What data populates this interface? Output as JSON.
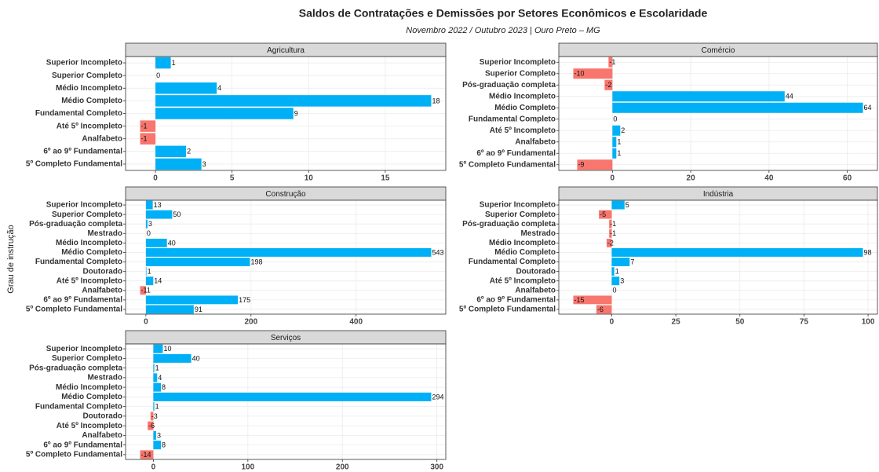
{
  "title": "Saldos de Contratações e Demissões por Setores Econômicos e Escolaridade",
  "subtitle": "Novembro 2022 / Outubro 2023 | Ouro Preto – MG",
  "y_label": "Grau de instrução",
  "colors": {
    "positive": "#00B0F6",
    "negative": "#F8766D"
  },
  "chart_data": [
    {
      "type": "bar",
      "title": "Agricultura",
      "categories": [
        "Superior Incompleto",
        "Superior Completo",
        "Médio Incompleto",
        "Médio Completo",
        "Fundamental Completo",
        "Até 5º Incompleto",
        "Analfabeto",
        "6º ao 9º Fundamental",
        "5º Completo Fundamental"
      ],
      "values": [
        1,
        0,
        4,
        18,
        9,
        -1,
        -1,
        2,
        3
      ],
      "xlim": [
        -1.95,
        18.95
      ],
      "xticks": [
        0,
        5,
        10,
        15
      ],
      "grid": true
    },
    {
      "type": "bar",
      "title": "Comércio",
      "categories": [
        "Superior Incompleto",
        "Superior Completo",
        "Pós-graduação completa",
        "Médio Incompleto",
        "Médio Completo",
        "Fundamental Completo",
        "Até 5º Incompleto",
        "Analfabeto",
        "6º ao 9º Fundamental",
        "5º Completo Fundamental"
      ],
      "values": [
        -1,
        -10,
        -2,
        44,
        64,
        0,
        2,
        1,
        1,
        -9
      ],
      "xlim": [
        -13.7,
        67.7
      ],
      "xticks": [
        0,
        20,
        40,
        60
      ],
      "grid": true
    },
    {
      "type": "bar",
      "title": "Construção",
      "categories": [
        "Superior Incompleto",
        "Superior Completo",
        "Pós-graduação completa",
        "Mestrado",
        "Médio Incompleto",
        "Médio Completo",
        "Fundamental Completo",
        "Doutorado",
        "Até 5º Incompleto",
        "Analfabeto",
        "6º ao 9º Fundamental",
        "5º Completo Fundamental"
      ],
      "values": [
        13,
        50,
        3,
        0,
        40,
        543,
        198,
        1,
        14,
        -11,
        175,
        91
      ],
      "xlim": [
        -38.7,
        570.7
      ],
      "xticks": [
        0,
        200,
        400
      ],
      "grid": true
    },
    {
      "type": "bar",
      "title": "Indústria",
      "categories": [
        "Superior Incompleto",
        "Superior Completo",
        "Pós-graduação completa",
        "Mestrado",
        "Médio Incompleto",
        "Médio Completo",
        "Fundamental Completo",
        "Doutorado",
        "Até 5º Incompleto",
        "Analfabeto",
        "6º ao 9º Fundamental",
        "5º Completo Fundamental"
      ],
      "values": [
        5,
        -5,
        -1,
        -1,
        -2,
        98,
        7,
        1,
        3,
        0,
        -15,
        -6
      ],
      "xlim": [
        -20.65,
        103.65
      ],
      "xticks": [
        0,
        25,
        50,
        75,
        100
      ],
      "grid": true
    },
    {
      "type": "bar",
      "title": "Serviços",
      "categories": [
        "Superior Incompleto",
        "Superior Completo",
        "Pós-graduação completa",
        "Mestrado",
        "Médio Incompleto",
        "Médio Completo",
        "Fundamental Completo",
        "Doutorado",
        "Até 5º Incompleto",
        "Analfabeto",
        "6º ao 9º Fundamental",
        "5º Completo Fundamental"
      ],
      "values": [
        10,
        40,
        1,
        4,
        8,
        294,
        1,
        -3,
        -6,
        3,
        8,
        -14
      ],
      "xlim": [
        -29.4,
        309.4
      ],
      "xticks": [
        0,
        100,
        200,
        300
      ],
      "grid": true
    }
  ]
}
